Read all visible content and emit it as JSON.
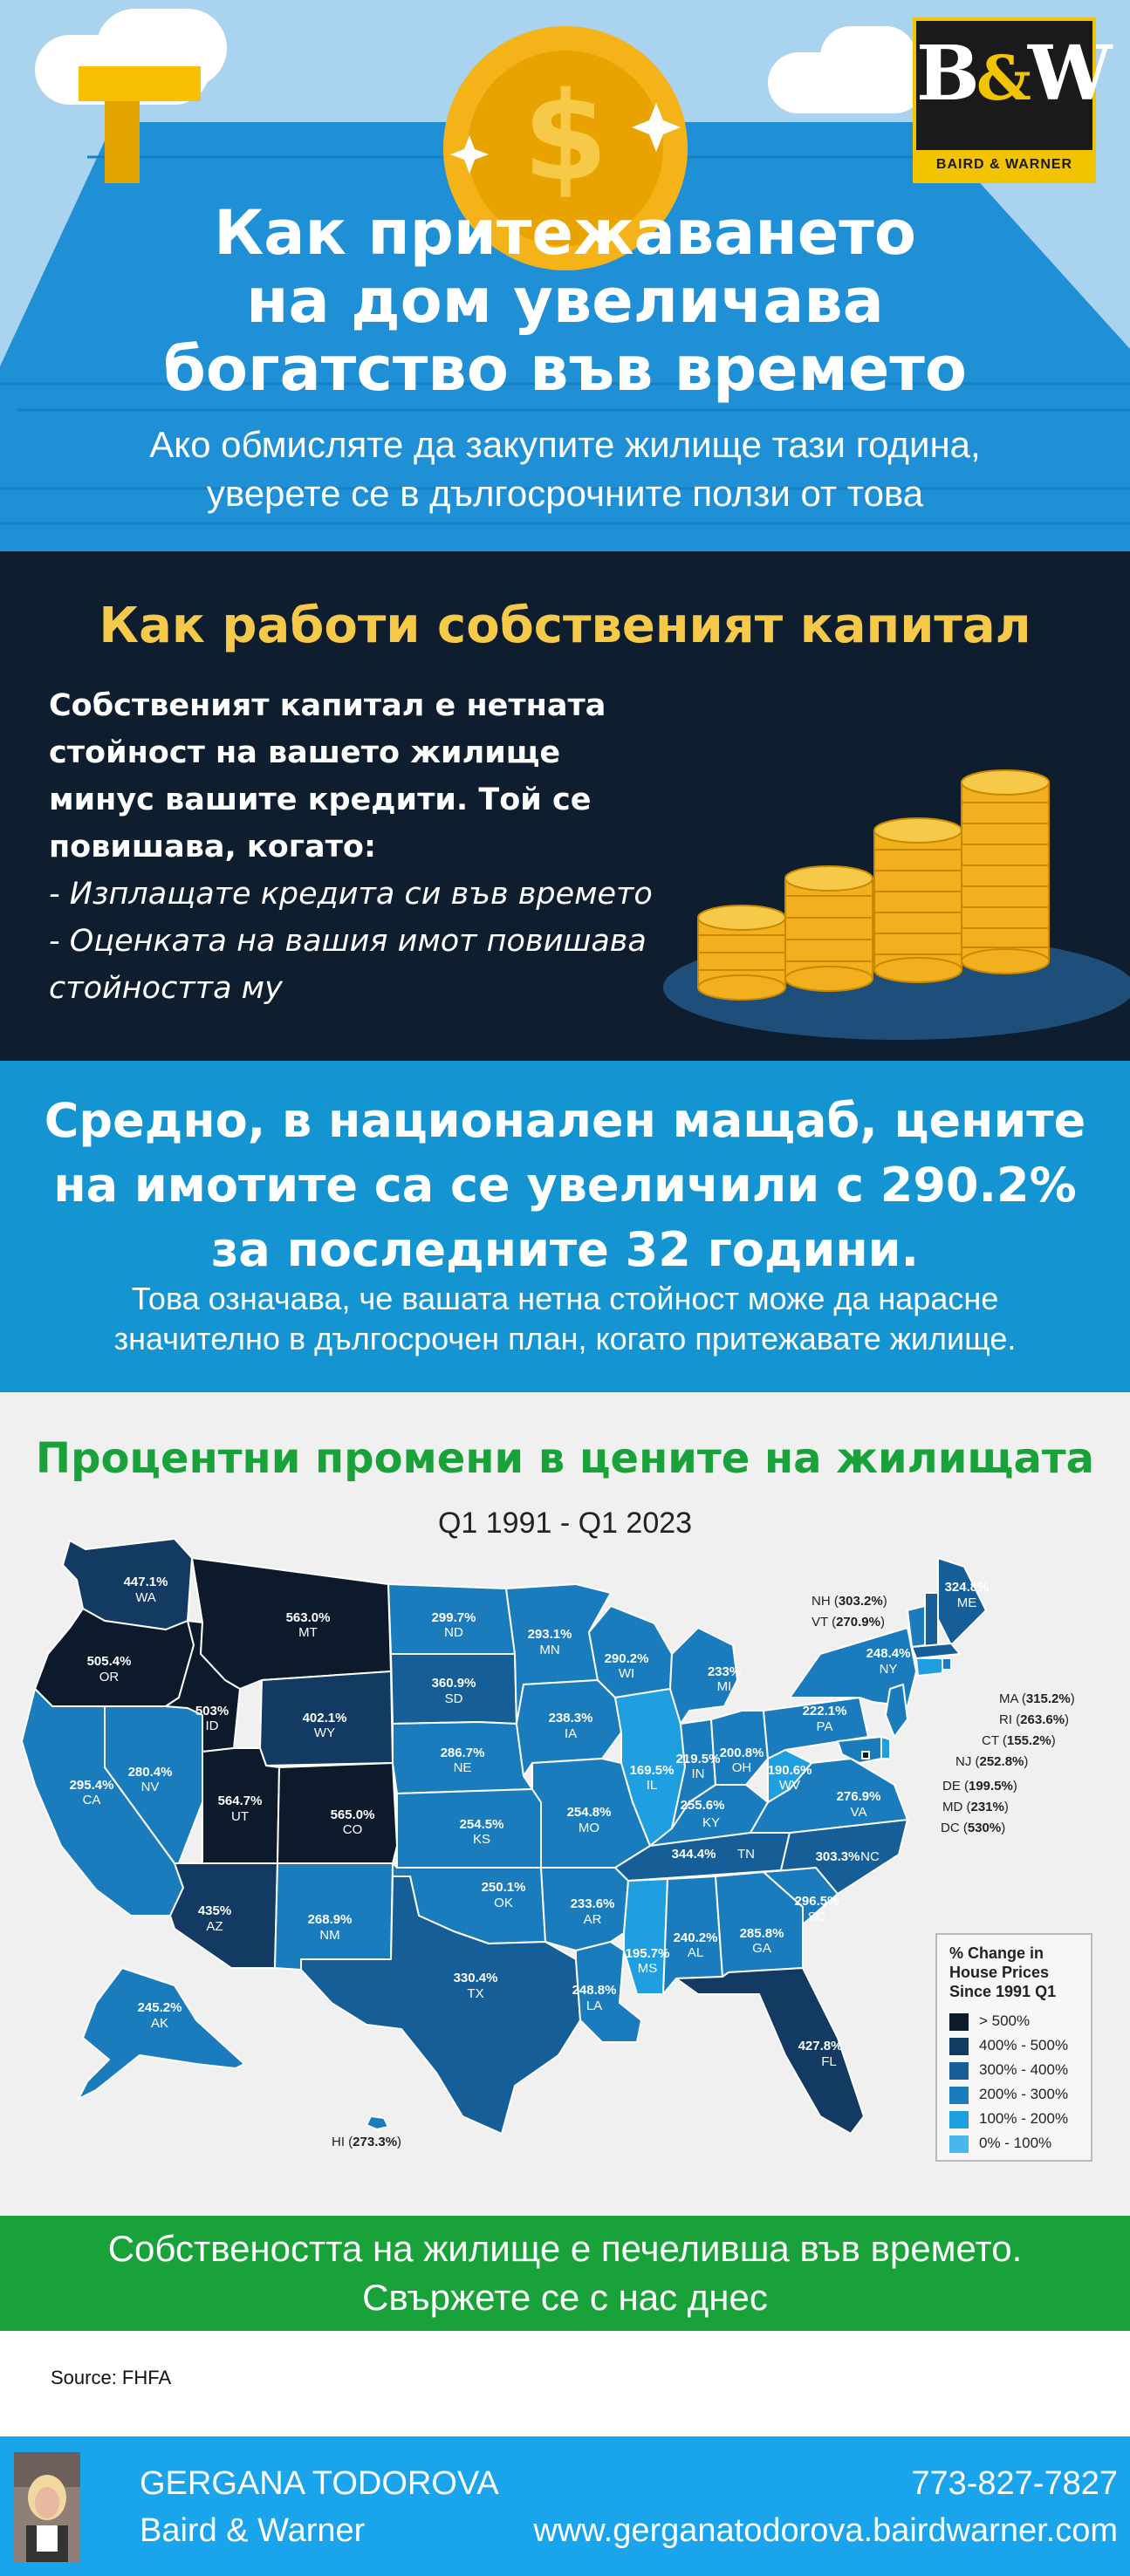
{
  "header": {
    "title_lines": [
      "Как притежаването",
      "на дом увеличава",
      "богатство във времето"
    ],
    "subtitle_lines": [
      "Ако обмисляте да закупите жилище тази година,",
      "уверете се в дългосрочните ползи от това"
    ],
    "logo": {
      "mark_left": "B",
      "mark_amp": "&",
      "mark_right": "W",
      "band": "BAIRD & WARNER"
    }
  },
  "equity": {
    "heading": "Как работи собственият капитал",
    "definition_lines": [
      "Собственият капитал е нетната",
      "стойност на вашето жилище",
      "минус вашите кредити. Той се",
      "повишава, когато:"
    ],
    "items": [
      "- Изплащате кредита си във времето",
      "- Оценката на вашия имот повишава",
      "стойността му"
    ]
  },
  "stat": {
    "heading_lines": [
      "Средно, в национален мащаб, цените",
      "на имотите са се увеличили с 290.2%",
      "за последните 32 години."
    ],
    "text_lines": [
      "Това означава, че вашата нетна стойност може да нарасне",
      "значително в дългосрочен план, когато притежавате жилище."
    ]
  },
  "map": {
    "heading": "Процентни промени в цените на жилищата",
    "period": "Q1 1991 - Q1 2023",
    "colors": {
      "b500": "#0d1a2b",
      "b400": "#123a63",
      "b300": "#155e97",
      "b200": "#1a7cbd",
      "b100": "#1f9ee0",
      "b0": "#48b7ec"
    },
    "states": {
      "WA": {
        "v": "447.1%",
        "b": "b400"
      },
      "OR": {
        "v": "505.4%",
        "b": "b500"
      },
      "CA": {
        "v": "295.4%",
        "b": "b200"
      },
      "ID": {
        "v": "503%",
        "b": "b500"
      },
      "NV": {
        "v": "280.4%",
        "b": "b200"
      },
      "MT": {
        "v": "563.0%",
        "b": "b500"
      },
      "WY": {
        "v": "402.1%",
        "b": "b400"
      },
      "UT": {
        "v": "564.7%",
        "b": "b500"
      },
      "CO": {
        "v": "565.0%",
        "b": "b500"
      },
      "AZ": {
        "v": "435%",
        "b": "b400"
      },
      "NM": {
        "v": "268.9%",
        "b": "b200"
      },
      "ND": {
        "v": "299.7%",
        "b": "b200"
      },
      "SD": {
        "v": "360.9%",
        "b": "b300"
      },
      "NE": {
        "v": "286.7%",
        "b": "b200"
      },
      "KS": {
        "v": "254.5%",
        "b": "b200"
      },
      "OK": {
        "v": "250.1%",
        "b": "b200"
      },
      "TX": {
        "v": "330.4%",
        "b": "b300"
      },
      "MN": {
        "v": "293.1%",
        "b": "b200"
      },
      "IA": {
        "v": "238.3%",
        "b": "b200"
      },
      "MO": {
        "v": "254.8%",
        "b": "b200"
      },
      "AR": {
        "v": "233.6%",
        "b": "b200"
      },
      "LA": {
        "v": "248.8%",
        "b": "b200"
      },
      "WI": {
        "v": "290.2%",
        "b": "b200"
      },
      "IL": {
        "v": "169.5%",
        "b": "b100"
      },
      "MI": {
        "v": "233%",
        "b": "b200"
      },
      "IN": {
        "v": "219.5%",
        "b": "b200"
      },
      "OH": {
        "v": "200.8%",
        "b": "b200"
      },
      "KY": {
        "v": "255.6%",
        "b": "b200"
      },
      "TN": {
        "v": "344.4%",
        "b": "b300"
      },
      "MS": {
        "v": "195.7%",
        "b": "b100"
      },
      "AL": {
        "v": "240.2%",
        "b": "b200"
      },
      "GA": {
        "v": "285.8%",
        "b": "b200"
      },
      "FL": {
        "v": "427.8%",
        "b": "b400"
      },
      "SC": {
        "v": "296.5%",
        "b": "b200"
      },
      "NC": {
        "v": "303.3%",
        "b": "b300"
      },
      "VA": {
        "v": "276.9%",
        "b": "b200"
      },
      "WV": {
        "v": "190.6%",
        "b": "b100"
      },
      "PA": {
        "v": "222.1%",
        "b": "b200"
      },
      "NY": {
        "v": "248.4%",
        "b": "b200"
      },
      "ME": {
        "v": "324.8%",
        "b": "b300"
      },
      "AK": {
        "v": "245.2%",
        "b": "b200"
      },
      "HI": {
        "v": "273.3%",
        "b": "b200"
      },
      "NH": {
        "v": "303.2%",
        "b": "b300"
      },
      "VT": {
        "v": "270.9%",
        "b": "b200"
      },
      "MA": {
        "v": "315.2%",
        "b": "b300"
      },
      "RI": {
        "v": "263.6%",
        "b": "b200"
      },
      "CT": {
        "v": "155.2%",
        "b": "b100"
      },
      "NJ": {
        "v": "252.8%",
        "b": "b200"
      },
      "DE": {
        "v": "199.5%",
        "b": "b100"
      },
      "MD": {
        "v": "231%",
        "b": "b200"
      },
      "DC": {
        "v": "530%",
        "b": "b500"
      }
    },
    "legend": {
      "title_lines": [
        "% Change in",
        "House Prices",
        "Since 1991 Q1"
      ],
      "items": [
        {
          "label": "> 500%",
          "color": "#0d1a2b"
        },
        {
          "label": "400% - 500%",
          "color": "#123a63"
        },
        {
          "label": "300% - 400%",
          "color": "#155e97"
        },
        {
          "label": "200% - 300%",
          "color": "#1a7cbd"
        },
        {
          "label": "100% - 200%",
          "color": "#1f9ee0"
        },
        {
          "label": "0% - 100%",
          "color": "#48b7ec"
        }
      ]
    }
  },
  "cta": {
    "lines": [
      "Собствеността на жилище е печеливша във времето.",
      "Свържете се с нас днес"
    ]
  },
  "source": "Source: FHFA",
  "agent": {
    "name": "GERGANA TODOROVA",
    "company": "Baird & Warner",
    "phone": "773-827-7827",
    "website": "www.gergana­todorova.bairdwarner.com"
  }
}
